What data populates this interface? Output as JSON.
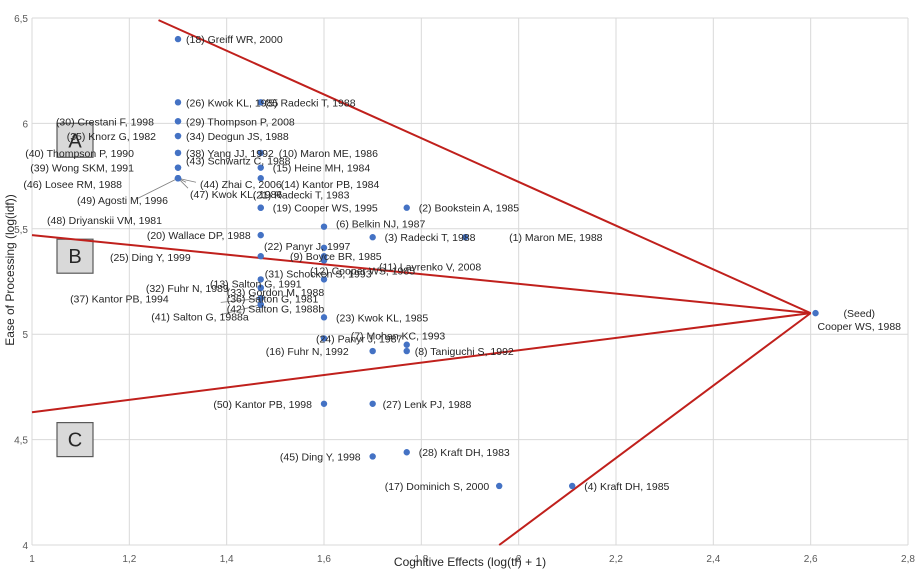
{
  "chart_data": {
    "type": "scatter",
    "title": "",
    "xlabel": "Cognitive Effects (log(tf) + 1)",
    "ylabel": "Ease of Processing (log(idf))",
    "xlim": [
      1,
      2.8
    ],
    "ylim": [
      4,
      6.5
    ],
    "x_ticks": [
      1,
      1.2,
      1.4,
      1.6,
      1.8,
      2,
      2.2,
      2.4,
      2.6,
      2.8
    ],
    "x_tick_labels": [
      "1",
      "1,2",
      "1,4",
      "1,6",
      "1,8",
      "2",
      "2,2",
      "2,4",
      "2,6",
      "2,8"
    ],
    "y_ticks": [
      4,
      4.5,
      5,
      5.5,
      6,
      6.5
    ],
    "y_tick_labels": [
      "4",
      "4,5",
      "5",
      "5,5",
      "6",
      "6,5"
    ],
    "grid": true,
    "point_color": "#4472c4",
    "line_color": "#c0201c",
    "regions": [
      "A",
      "B",
      "C"
    ],
    "lines": [
      {
        "x": [
          1.26,
          2.6
        ],
        "y": [
          6.49,
          5.1
        ]
      },
      {
        "x": [
          1.0,
          2.6
        ],
        "y": [
          5.47,
          5.1
        ]
      },
      {
        "x": [
          1.0,
          2.6
        ],
        "y": [
          4.63,
          5.1
        ]
      },
      {
        "x": [
          1.96,
          2.6
        ],
        "y": [
          4.0,
          5.1
        ]
      }
    ],
    "points": [
      {
        "label": "(18) Greiff WR, 2000",
        "x": 1.3,
        "y": 6.4
      },
      {
        "label": "(26) Kwok KL, 1985",
        "x": 1.3,
        "y": 6.1
      },
      {
        "label": "(5) Radecki T, 1988",
        "x": 1.47,
        "y": 6.1
      },
      {
        "label": "(30) Crestani F, 1998",
        "x": 1.3,
        "y": 6.01
      },
      {
        "label": "(29) Thompson P, 2008",
        "x": 1.3,
        "y": 6.01
      },
      {
        "label": "(35) Knorz G, 1982",
        "x": 1.3,
        "y": 5.94
      },
      {
        "label": "(34) Deogun JS, 1988",
        "x": 1.3,
        "y": 5.94
      },
      {
        "label": "(40) Thompson P, 1990",
        "x": 1.3,
        "y": 5.86
      },
      {
        "label": "(38) Yang JJ, 1992",
        "x": 1.3,
        "y": 5.86
      },
      {
        "label": "(10) Maron ME, 1986",
        "x": 1.47,
        "y": 5.86
      },
      {
        "label": "(39) Wong SKM, 1991",
        "x": 1.3,
        "y": 5.79
      },
      {
        "label": "(43) Schwartz C, 1988",
        "x": 1.3,
        "y": 5.79
      },
      {
        "label": "(15) Heine MH, 1984",
        "x": 1.47,
        "y": 5.79
      },
      {
        "label": "(46) Losee RM, 1988",
        "x": 1.3,
        "y": 5.74
      },
      {
        "label": "(44) Zhai C, 2006",
        "x": 1.3,
        "y": 5.74
      },
      {
        "label": "(14) Kantor PB, 1984",
        "x": 1.47,
        "y": 5.74
      },
      {
        "label": "(47) Kwok KL, 1986",
        "x": 1.3,
        "y": 5.74
      },
      {
        "label": "(49) Agosti M, 1996",
        "x": 1.3,
        "y": 5.74
      },
      {
        "label": "(48) Driyanskii VM, 1981",
        "x": 1.3,
        "y": 5.74
      },
      {
        "label": "(19) Cooper WS, 1995",
        "x": 1.47,
        "y": 5.6
      },
      {
        "label": "(2) Bookstein A, 1985",
        "x": 1.77,
        "y": 5.6
      },
      {
        "label": "(21) Radecki T, 1983",
        "x": 1.47,
        "y": 5.6
      },
      {
        "label": "(6) Belkin NJ, 1987",
        "x": 1.6,
        "y": 5.51
      },
      {
        "label": "(20) Wallace DP, 1988",
        "x": 1.47,
        "y": 5.47
      },
      {
        "label": "(3) Radecki T, 1988",
        "x": 1.7,
        "y": 5.46
      },
      {
        "label": "(1) Maron ME, 1988",
        "x": 1.89,
        "y": 5.46
      },
      {
        "label": "(22) Panyr J, 1997",
        "x": 1.6,
        "y": 5.41
      },
      {
        "label": "(9) Boyce BR, 1985",
        "x": 1.6,
        "y": 5.37
      },
      {
        "label": "(25) Ding Y, 1999",
        "x": 1.47,
        "y": 5.37
      },
      {
        "label": "(11) Lavrenko V, 2008",
        "x": 1.6,
        "y": 5.35
      },
      {
        "label": "(12) Cooper WS, 1985",
        "x": 1.6,
        "y": 5.35
      },
      {
        "label": "(31) Schocken S, 1993",
        "x": 1.47,
        "y": 5.26
      },
      {
        "label": "(13) Salton G, 1991",
        "x": 1.6,
        "y": 5.26
      },
      {
        "label": "(32) Fuhr N, 1989",
        "x": 1.47,
        "y": 5.22
      },
      {
        "label": "(33) Gordon M, 1988",
        "x": 1.47,
        "y": 5.22
      },
      {
        "label": "(37) Kantor PB, 1994",
        "x": 1.47,
        "y": 5.17
      },
      {
        "label": "(36) Salton G, 1981",
        "x": 1.47,
        "y": 5.17
      },
      {
        "label": "(42) Salton G, 1988b",
        "x": 1.47,
        "y": 5.14
      },
      {
        "label": "(41) Salton G, 1988a",
        "x": 1.47,
        "y": 5.14
      },
      {
        "label": "(23) Kwok KL, 1985",
        "x": 1.6,
        "y": 5.08
      },
      {
        "label": "(24) Panyr J, 1987",
        "x": 1.6,
        "y": 4.98
      },
      {
        "label": "(7) Mohan KC, 1993",
        "x": 1.77,
        "y": 4.95
      },
      {
        "label": "(16) Fuhr N, 1992",
        "x": 1.7,
        "y": 4.92
      },
      {
        "label": "(8) Taniguchi S, 1992",
        "x": 1.77,
        "y": 4.92
      },
      {
        "label": "(50) Kantor PB, 1998",
        "x": 1.6,
        "y": 4.67
      },
      {
        "label": "(27) Lenk PJ, 1988",
        "x": 1.7,
        "y": 4.67
      },
      {
        "label": "(45) Ding Y, 1998",
        "x": 1.7,
        "y": 4.42
      },
      {
        "label": "(28) Kraft DH, 1983",
        "x": 1.77,
        "y": 4.44
      },
      {
        "label": "(17) Dominich S, 2000",
        "x": 1.96,
        "y": 4.28
      },
      {
        "label": "(4) Kraft DH, 1985",
        "x": 2.11,
        "y": 4.28
      },
      {
        "label": "(Seed)",
        "label2": "Cooper WS, 1988",
        "x": 2.61,
        "y": 5.1
      }
    ]
  }
}
